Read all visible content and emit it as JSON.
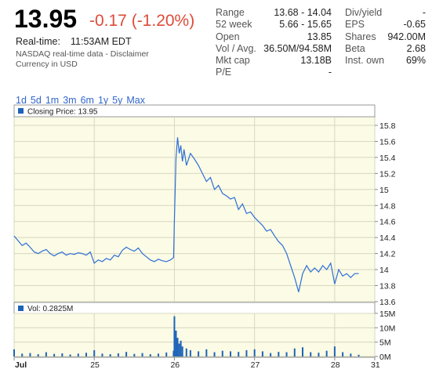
{
  "quote": {
    "price": "13.95",
    "change": "-0.17 (-1.20%)",
    "realtime_label": "Real-time:",
    "realtime_time": "11:53AM EDT",
    "source": "NASDAQ real-time data - Disclaimer",
    "currency": "Currency in USD"
  },
  "stats_left": [
    {
      "label": "Range",
      "value": "13.68 - 14.04"
    },
    {
      "label": "52 week",
      "value": "5.66 - 15.65"
    },
    {
      "label": "Open",
      "value": "13.85"
    },
    {
      "label": "Vol / Avg.",
      "value": "36.50M/94.58M"
    },
    {
      "label": "Mkt cap",
      "value": "13.18B"
    },
    {
      "label": "P/E",
      "value": "-"
    }
  ],
  "stats_right": [
    {
      "label": "Div/yield",
      "value": "-"
    },
    {
      "label": "EPS",
      "value": "-0.65"
    },
    {
      "label": "Shares",
      "value": "942.00M"
    },
    {
      "label": "Beta",
      "value": "2.68"
    },
    {
      "label": "Inst. own",
      "value": "69%"
    }
  ],
  "ranges": [
    "1d",
    "5d",
    "1m",
    "3m",
    "6m",
    "1y",
    "5y",
    "Max"
  ],
  "colors": {
    "accent": "#3366cc",
    "line": "#2f6fd6",
    "bar": "#1e63b8",
    "plot_bg": "#fbfbe6",
    "negative": "#dd4b39"
  },
  "chart_data": [
    {
      "type": "line",
      "legend": "Closing Price: 13.95",
      "ylim": [
        13.6,
        15.8
      ],
      "y_ticks": [
        "15.8",
        "15.6",
        "15.4",
        "15.2",
        "15",
        "14.8",
        "14.6",
        "14.4",
        "14.2",
        "14",
        "13.8",
        "13.6"
      ],
      "x_ticks": [
        "Jul",
        "25",
        "26",
        "27",
        "28",
        "31"
      ],
      "grid": true,
      "x": [
        24.0,
        24.05,
        24.1,
        24.15,
        24.2,
        24.25,
        24.3,
        24.35,
        24.4,
        24.45,
        24.5,
        24.55,
        24.6,
        24.65,
        24.7,
        24.75,
        24.8,
        24.85,
        24.9,
        24.95,
        25.0,
        25.05,
        25.1,
        25.15,
        25.2,
        25.25,
        25.3,
        25.35,
        25.4,
        25.45,
        25.5,
        25.55,
        25.6,
        25.65,
        25.7,
        25.75,
        25.8,
        25.85,
        25.9,
        25.95,
        25.99,
        26.0,
        26.02,
        26.04,
        26.06,
        26.08,
        26.1,
        26.12,
        26.15,
        26.2,
        26.25,
        26.3,
        26.35,
        26.4,
        26.45,
        26.5,
        26.55,
        26.6,
        26.65,
        26.7,
        26.75,
        26.8,
        26.85,
        26.9,
        26.95,
        27.0,
        27.05,
        27.1,
        27.15,
        27.2,
        27.25,
        27.3,
        27.35,
        27.4,
        27.45,
        27.5,
        27.55,
        27.6,
        27.65,
        27.7,
        27.75,
        27.8,
        27.85,
        27.9,
        27.95,
        28.0,
        28.05,
        28.1,
        28.15,
        28.2,
        28.25,
        28.3
      ],
      "y": [
        14.42,
        14.36,
        14.3,
        14.33,
        14.28,
        14.22,
        14.2,
        14.23,
        14.25,
        14.2,
        14.17,
        14.2,
        14.22,
        14.18,
        14.2,
        14.19,
        14.21,
        14.2,
        14.18,
        14.22,
        14.08,
        14.12,
        14.1,
        14.14,
        14.12,
        14.18,
        14.16,
        14.24,
        14.28,
        14.25,
        14.23,
        14.27,
        14.2,
        14.16,
        14.12,
        14.1,
        14.13,
        14.11,
        14.1,
        14.12,
        14.15,
        14.6,
        15.4,
        15.65,
        15.45,
        15.55,
        15.35,
        15.5,
        15.3,
        15.45,
        15.38,
        15.3,
        15.2,
        15.1,
        15.15,
        15.0,
        15.05,
        14.95,
        14.92,
        14.88,
        14.9,
        14.75,
        14.82,
        14.7,
        14.72,
        14.65,
        14.6,
        14.55,
        14.48,
        14.5,
        14.42,
        14.35,
        14.3,
        14.2,
        14.05,
        13.9,
        13.72,
        13.95,
        14.05,
        13.97,
        14.02,
        13.97,
        14.05,
        14.0,
        14.08,
        13.82,
        14.0,
        13.92,
        13.95,
        13.9,
        13.95,
        13.95
      ]
    },
    {
      "type": "bar",
      "legend": "Vol: 0.2825M",
      "ylim": [
        0,
        15
      ],
      "y_ticks": [
        "15M",
        "10M",
        "5M",
        "0M"
      ],
      "x": [
        24.0,
        24.1,
        24.2,
        24.3,
        24.4,
        24.5,
        24.6,
        24.7,
        24.8,
        24.9,
        25.0,
        25.1,
        25.2,
        25.3,
        25.4,
        25.5,
        25.6,
        25.7,
        25.8,
        25.9,
        25.99,
        26.0,
        26.02,
        26.04,
        26.06,
        26.08,
        26.1,
        26.15,
        26.2,
        26.3,
        26.4,
        26.5,
        26.6,
        26.7,
        26.8,
        26.9,
        27.0,
        27.1,
        27.2,
        27.3,
        27.4,
        27.5,
        27.6,
        27.7,
        27.8,
        27.9,
        28.0,
        28.1,
        28.2,
        28.3
      ],
      "values": [
        2.5,
        1.0,
        1.2,
        0.8,
        1.5,
        0.9,
        1.1,
        0.7,
        1.0,
        1.3,
        2.2,
        1.0,
        0.8,
        1.1,
        1.6,
        0.9,
        1.2,
        0.8,
        1.0,
        1.4,
        2.0,
        14.0,
        9.0,
        6.5,
        4.5,
        5.5,
        3.5,
        2.8,
        2.2,
        1.8,
        2.5,
        1.5,
        2.0,
        1.8,
        1.6,
        2.2,
        2.5,
        1.8,
        1.2,
        1.6,
        1.5,
        2.8,
        3.2,
        1.5,
        1.3,
        2.0,
        3.5,
        1.5,
        1.0,
        0.6
      ]
    }
  ]
}
